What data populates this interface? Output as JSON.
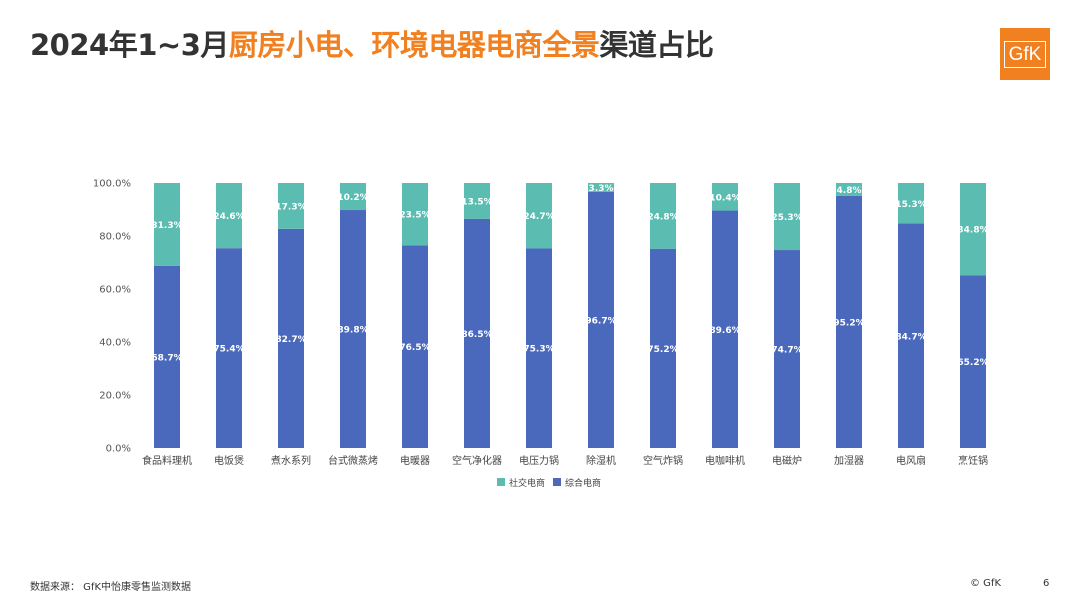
{
  "title": {
    "prefix": "2024年1~3月",
    "highlight": "厨房小电、环境电器电商全景",
    "suffix": "渠道占比"
  },
  "logo": {
    "text": "GfK",
    "color": "#F08020"
  },
  "footer": {
    "source": "数据来源：  GfK中怡康零售监测数据",
    "copyright": "© GfK",
    "page": "6"
  },
  "chart_data": {
    "type": "bar",
    "stacked": true,
    "categories": [
      "食品料理机",
      "电饭煲",
      "煮水系列",
      "台式微蒸烤",
      "电暖器",
      "空气净化器",
      "电压力锅",
      "除湿机",
      "空气炸锅",
      "电咖啡机",
      "电磁炉",
      "加湿器",
      "电风扇",
      "烹饪锅"
    ],
    "series": [
      {
        "name": "综合电商",
        "color": "#4A69BD",
        "values": [
          68.7,
          75.4,
          82.7,
          89.8,
          76.5,
          86.5,
          75.3,
          96.7,
          75.2,
          89.6,
          74.7,
          95.2,
          84.7,
          65.2
        ],
        "labels": [
          "68.7%",
          "75.4%",
          "82.7%",
          "89.8%",
          "76.5%",
          "86.5%",
          "75.3%",
          "96.7%",
          "75.2%",
          "89.6%",
          "74.7%",
          "95.2%",
          "84.7%",
          "65.2%"
        ]
      },
      {
        "name": "社交电商",
        "color": "#5BBDB1",
        "values": [
          31.3,
          24.6,
          17.3,
          10.2,
          23.5,
          13.5,
          24.7,
          3.3,
          24.8,
          10.4,
          25.3,
          4.8,
          15.3,
          34.8
        ],
        "labels": [
          "31.3%",
          "24.6%",
          "17.3%",
          "10.2%",
          "23.5%",
          "13.5%",
          "24.7%",
          "3.3%",
          "24.8%",
          "10.4%",
          "25.3%",
          "4.8%",
          "15.3%",
          "34.8%"
        ]
      }
    ],
    "legend_order": [
      "社交电商",
      "综合电商"
    ],
    "yticks": [
      "0.0%",
      "20.0%",
      "40.0%",
      "60.0%",
      "80.0%",
      "100.0%"
    ],
    "ylim": [
      0,
      100
    ],
    "grid": false,
    "legend_position": "bottom"
  }
}
